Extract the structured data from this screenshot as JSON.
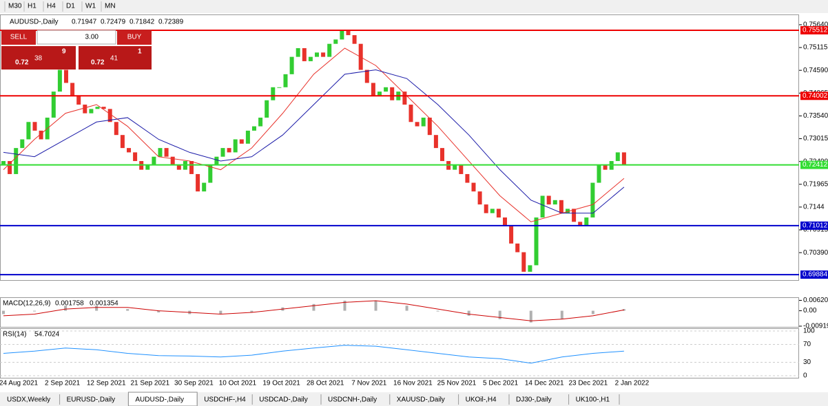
{
  "toolbar": [
    "M30",
    "H1",
    "H4",
    "D1",
    "W1",
    "MN"
  ],
  "trade_panel": {
    "sell": "SELL",
    "buy": "BUY",
    "lot": "3.00",
    "sell_price": [
      "0.72",
      "38",
      "9"
    ],
    "buy_price": [
      "0.72",
      "41",
      "1"
    ]
  },
  "chart_data": {
    "type": "candlestick",
    "title": "AUDUSD-,Daily",
    "ohlc": [
      0.71947,
      0.72479,
      0.71842,
      0.72389
    ],
    "up_color": "#32cd32",
    "down_color": "#e8322b",
    "first_open": 0.724,
    "close": [
      0.725,
      0.722,
      0.728,
      0.73,
      0.734,
      0.732,
      0.73,
      0.735,
      0.741,
      0.746,
      0.743,
      0.74,
      0.738,
      0.736,
      0.737,
      0.7375,
      0.737,
      0.734,
      0.731,
      0.728,
      0.727,
      0.725,
      0.723,
      0.724,
      0.726,
      0.728,
      0.726,
      0.724,
      0.723,
      0.725,
      0.722,
      0.718,
      0.72,
      0.724,
      0.726,
      0.728,
      0.727,
      0.73,
      0.729,
      0.732,
      0.733,
      0.735,
      0.739,
      0.742,
      0.742,
      0.745,
      0.749,
      0.751,
      0.748,
      0.749,
      0.75,
      0.749,
      0.752,
      0.753,
      0.755,
      0.754,
      0.752,
      0.746,
      0.743,
      0.74,
      0.741,
      0.742,
      0.739,
      0.741,
      0.738,
      0.734,
      0.733,
      0.735,
      0.731,
      0.728,
      0.725,
      0.723,
      0.724,
      0.722,
      0.72,
      0.718,
      0.715,
      0.713,
      0.714,
      0.712,
      0.71,
      0.706,
      0.704,
      0.6995,
      0.701,
      0.712,
      0.717,
      0.715,
      0.716,
      0.713,
      0.714,
      0.711,
      0.71,
      0.712,
      0.72,
      0.724,
      0.723,
      0.725,
      0.727,
      0.724
    ],
    "ylim": [
      0.6979,
      0.7575
    ],
    "yticks": [
      {
        "value": 0.7564,
        "label": "0.75640"
      },
      0.75115,
      {
        "value": 0.7459,
        "label": "0.74590"
      },
      0.74065,
      {
        "value": 0.7354,
        "label": "0.73540"
      },
      0.73015,
      {
        "value": 0.7249,
        "label": "0.72490"
      },
      0.71965,
      0.7144,
      0.70915,
      {
        "value": 0.7039,
        "label": "0.70390"
      }
    ],
    "levels": [
      {
        "value": 0.75512,
        "color": "#ee0000"
      },
      {
        "value": 0.74002,
        "color": "#ee0000"
      },
      {
        "value": 0.72412,
        "color": "#33dd33"
      },
      {
        "value": 0.71012,
        "color": "#0000cc"
      },
      {
        "value": 0.69884,
        "color": "#0000cc"
      }
    ],
    "series": [
      {
        "color": "#e8322b",
        "values": [
          0.723,
          0.73,
          0.736,
          0.738,
          0.733,
          0.726,
          0.725,
          0.723,
          0.728,
          0.736,
          0.745,
          0.751,
          0.747,
          0.74,
          0.733,
          0.725,
          0.717,
          0.711,
          0.713,
          0.715,
          0.721
        ]
      },
      {
        "color": "#1a1aa8",
        "values": [
          0.727,
          0.726,
          0.73,
          0.734,
          0.735,
          0.73,
          0.727,
          0.725,
          0.726,
          0.731,
          0.738,
          0.745,
          0.746,
          0.744,
          0.738,
          0.731,
          0.723,
          0.716,
          0.713,
          0.713,
          0.719
        ]
      }
    ],
    "x_labels": [
      "24 Aug 2021",
      "2 Sep 2021",
      "12 Sep 2021",
      "21 Sep 2021",
      "30 Sep 2021",
      "10 Oct 2021",
      "19 Oct 2021",
      "28 Oct 2021",
      "7 Nov 2021",
      "16 Nov 2021",
      "25 Nov 2021",
      "5 Dec 2021",
      "14 Dec 2021",
      "23 Dec 2021",
      "2 Jan 2022"
    ]
  },
  "macd": {
    "title": "MACD(12,26,9)",
    "header": [
      0.001758,
      0.001354
    ],
    "ylim": [
      -0.0092,
      0.0068
    ],
    "yticks": [
      0.006201,
      {
        "value": 0,
        "label": "0.00"
      },
      -0.00919
    ],
    "histogram": [
      -0.002,
      0,
      0.003,
      0.003,
      0.001,
      -0.001,
      -0.002,
      -0.002,
      -0.001,
      0.002,
      0.004,
      0.006,
      0.006,
      0.003,
      0,
      -0.003,
      -0.005,
      -0.007,
      -0.005,
      -0.002,
      0.001
    ],
    "signal": [
      -0.003,
      -0.002,
      0.001,
      0.002,
      0.002,
      0,
      -0.001,
      -0.002,
      -0.001,
      0.001,
      0.003,
      0.005,
      0.006,
      0.004,
      0.001,
      -0.002,
      -0.004,
      -0.006,
      -0.005,
      -0.003,
      0.0005
    ]
  },
  "rsi": {
    "title": "RSI(14)",
    "value": 54.7024,
    "ylim": [
      0,
      100
    ],
    "yticks": [
      100,
      70,
      30,
      0
    ],
    "values": [
      50,
      55,
      62,
      58,
      50,
      45,
      44,
      42,
      46,
      55,
      62,
      68,
      66,
      58,
      50,
      42,
      38,
      28,
      42,
      50,
      55
    ]
  },
  "tabs": [
    "USDX,Weekly",
    "EURUSD-,Daily",
    "AUDUSD-,Daily",
    "USDCHF-,H4",
    "USDCAD-,Daily",
    "USDCNH-,Daily",
    "XAUUSD-,Daily",
    "UKOil-,H4",
    "DJ30-,Daily",
    "UK100-,H1"
  ]
}
